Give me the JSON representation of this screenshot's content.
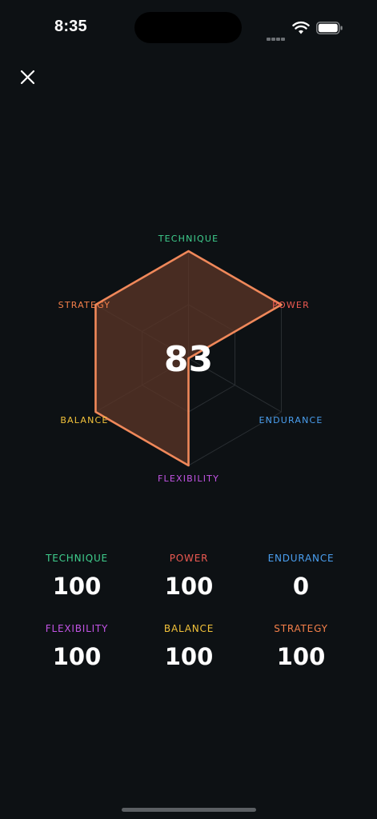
{
  "status_bar": {
    "time": "8:35"
  },
  "radar": {
    "score": "83",
    "fill_color": "#5a3426",
    "stroke_color": "#f0885a",
    "axes": [
      {
        "label": "TECHNIQUE",
        "value": 100,
        "color": "#3fcf8e"
      },
      {
        "label": "POWER",
        "value": 100,
        "color": "#ee5a52"
      },
      {
        "label": "ENDURANCE",
        "value": 0,
        "color": "#4a9ff0"
      },
      {
        "label": "FLEXIBILITY",
        "value": 100,
        "color": "#c354e6"
      },
      {
        "label": "BALANCE",
        "value": 100,
        "color": "#f2c23a"
      },
      {
        "label": "STRATEGY",
        "value": 100,
        "color": "#f5804a"
      }
    ]
  },
  "stats": [
    {
      "label": "TECHNIQUE",
      "value": "100",
      "color": "#3fcf8e"
    },
    {
      "label": "POWER",
      "value": "100",
      "color": "#ee5a52"
    },
    {
      "label": "ENDURANCE",
      "value": "0",
      "color": "#4a9ff0"
    },
    {
      "label": "FLEXIBILITY",
      "value": "100",
      "color": "#c354e6"
    },
    {
      "label": "BALANCE",
      "value": "100",
      "color": "#f2c23a"
    },
    {
      "label": "STRATEGY",
      "value": "100",
      "color": "#f5804a"
    }
  ]
}
